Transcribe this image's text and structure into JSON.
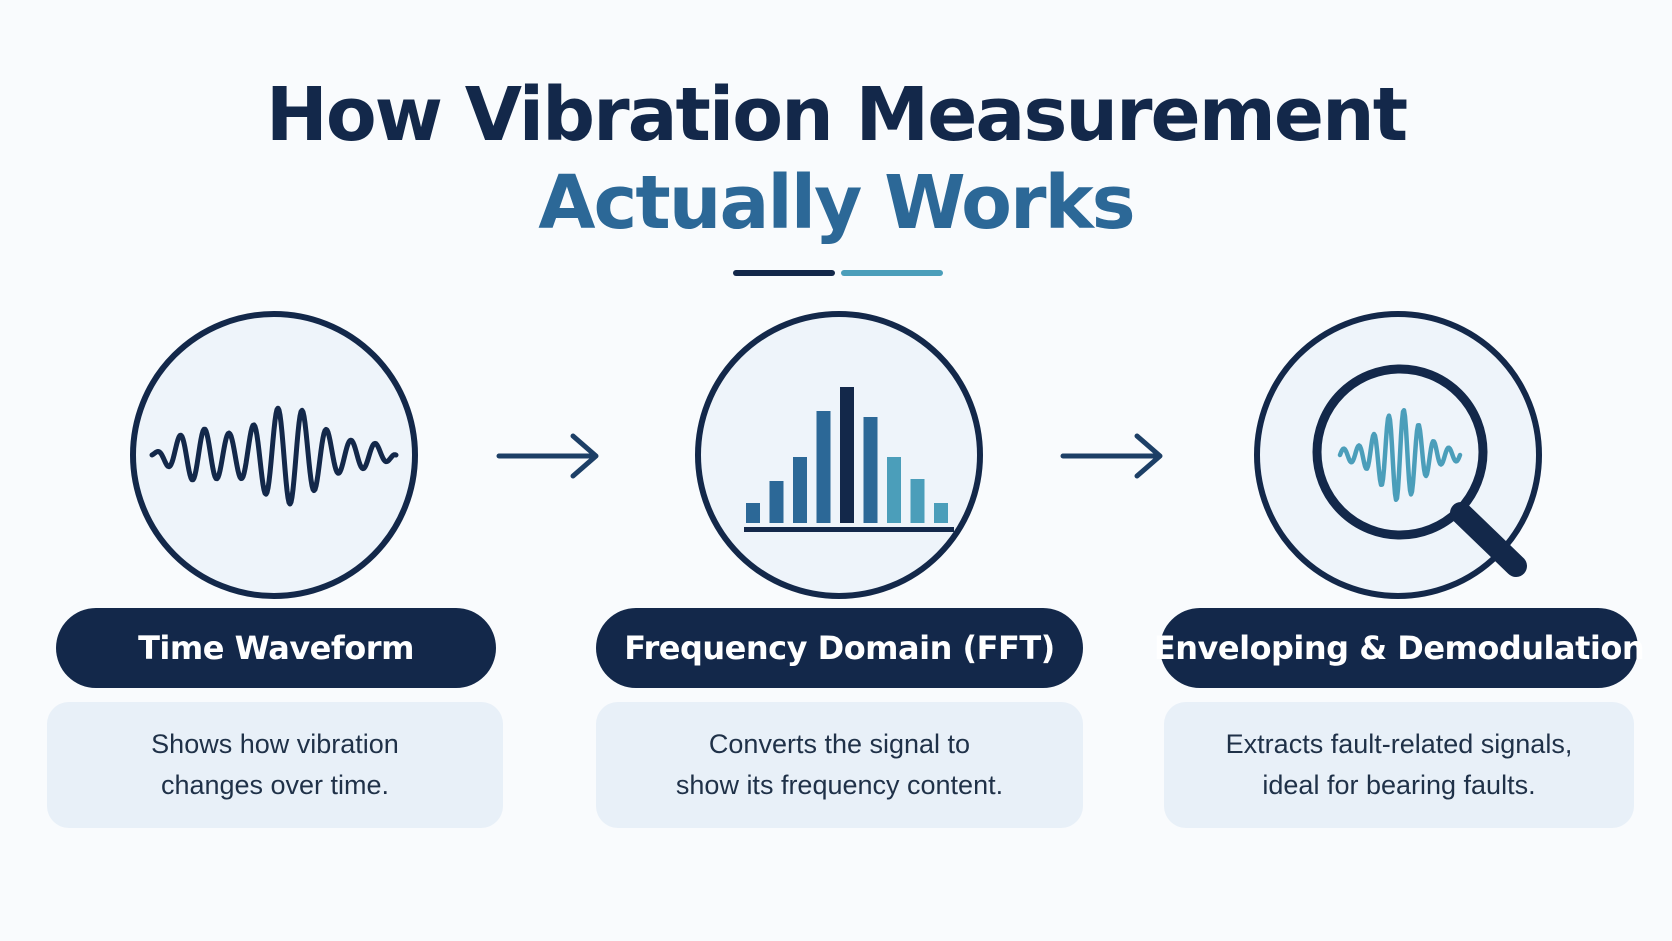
{
  "title": {
    "line1": "How Vibration Measurement",
    "line2": "Actually Works"
  },
  "colors": {
    "navy": "#13284a",
    "blue": "#2c6897",
    "teal": "#4b9eba",
    "background": "#f9fbfd",
    "panel": "#e8f0f8"
  },
  "steps": [
    {
      "icon": "waveform-icon",
      "label": "Time Waveform",
      "description": [
        "Shows how vibration",
        "changes over time."
      ]
    },
    {
      "icon": "frequency-bars-icon",
      "label": "Frequency Domain (FFT)",
      "description": [
        "Converts the signal to",
        "show its frequency content."
      ]
    },
    {
      "icon": "magnifier-waveform-icon",
      "label": "Enveloping & Demodulation",
      "description": [
        "Extracts fault-related signals,",
        "ideal for bearing faults."
      ]
    }
  ]
}
